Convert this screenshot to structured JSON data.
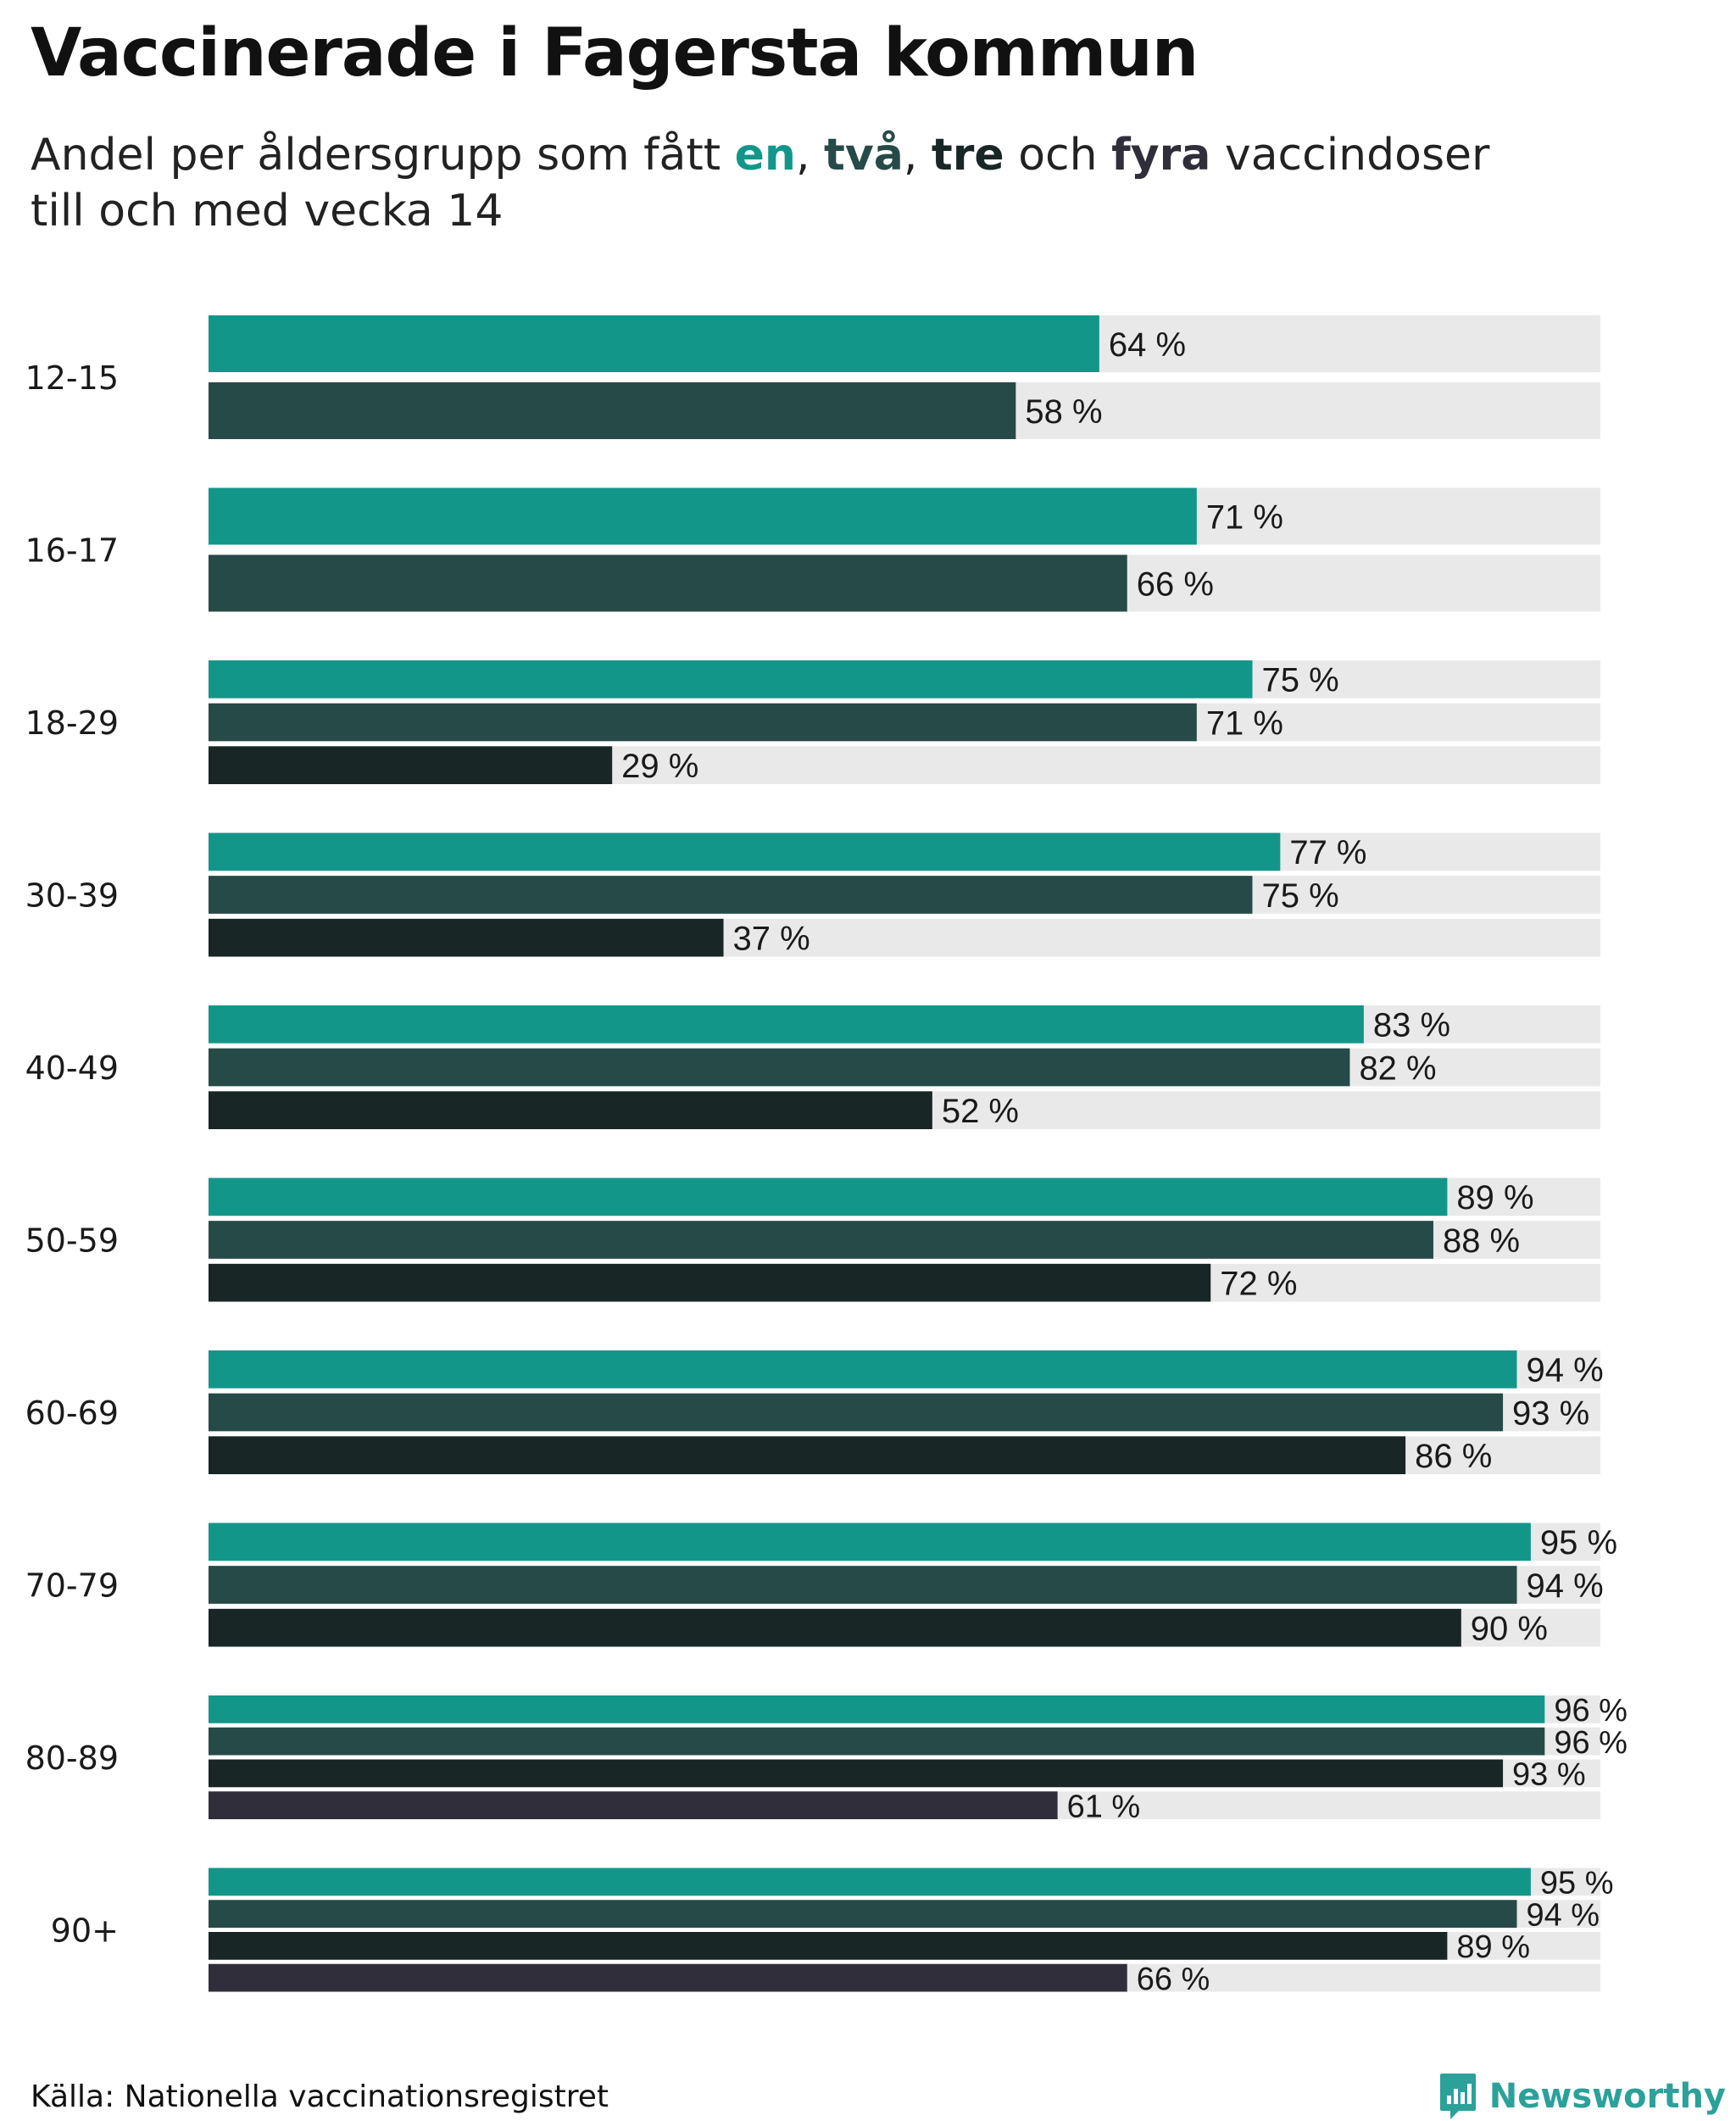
{
  "title": "Vaccinerade i Fagersta kommun",
  "subtitle": {
    "part1": "Andel per åldersgrupp som fått ",
    "en": "en",
    "sep1": ", ",
    "tva": "två",
    "sep2": ", ",
    "tre": "tre",
    "och": " och ",
    "fyra": "fyra",
    "part2": " vaccindoser",
    "line2": "till och med vecka 14"
  },
  "colors": {
    "en": "#13968a",
    "tva": "#264a47",
    "tre": "#182625",
    "fyra": "#2f2e3a",
    "track": "#e9e9e9",
    "brand": "#2ba19a"
  },
  "chart_data": {
    "type": "bar",
    "orientation": "horizontal",
    "title": "Vaccinerade i Fagersta kommun",
    "xlim": [
      0,
      100
    ],
    "unit": " %",
    "categories": [
      "12-15",
      "16-17",
      "18-29",
      "30-39",
      "40-49",
      "50-59",
      "60-69",
      "70-79",
      "80-89",
      "90+"
    ],
    "series": [
      {
        "name": "en",
        "values": [
          64,
          71,
          75,
          77,
          83,
          89,
          94,
          95,
          96,
          95
        ]
      },
      {
        "name": "två",
        "values": [
          58,
          66,
          71,
          75,
          82,
          88,
          93,
          94,
          96,
          94
        ]
      },
      {
        "name": "tre",
        "values": [
          null,
          null,
          29,
          37,
          52,
          72,
          86,
          90,
          93,
          89
        ]
      },
      {
        "name": "fyra",
        "values": [
          null,
          null,
          null,
          null,
          null,
          null,
          null,
          null,
          61,
          66
        ]
      }
    ]
  },
  "source": "Källa: Nationella vaccinationsregistret",
  "brand": {
    "name": "Newsworthy",
    "icon": "newsworthy-logo-icon"
  }
}
